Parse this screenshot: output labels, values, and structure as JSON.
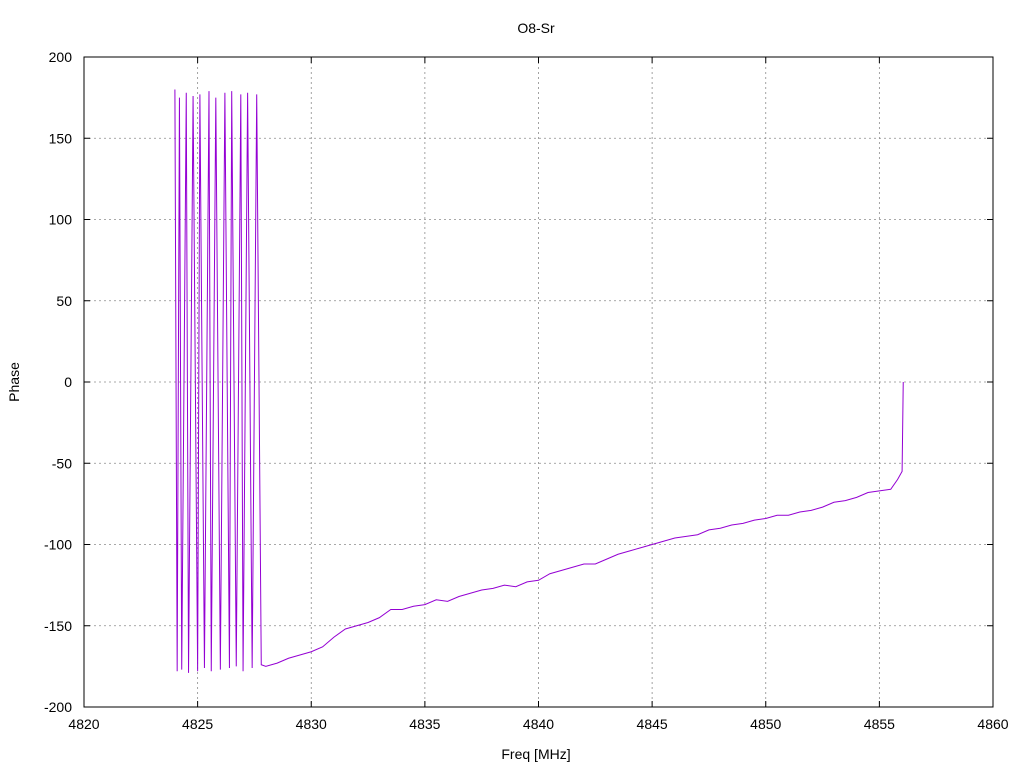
{
  "chart_data": {
    "type": "line",
    "title": "O8-Sr",
    "xlabel": "Freq [MHz]",
    "ylabel": "Phase",
    "xlim": [
      4820,
      4860
    ],
    "ylim": [
      -200,
      200
    ],
    "x_ticks": [
      4820,
      4825,
      4830,
      4835,
      4840,
      4845,
      4850,
      4855,
      4860
    ],
    "y_ticks": [
      -200,
      -150,
      -100,
      -50,
      0,
      50,
      100,
      150,
      200
    ],
    "grid": true,
    "legend": "none",
    "series_color": "#9400d3",
    "series": [
      {
        "x": [
          4824.0,
          4824.1,
          4824.2,
          4824.3,
          4824.5,
          4824.6,
          4824.8,
          4825.0,
          4825.1,
          4825.3,
          4825.5,
          4825.6,
          4825.8,
          4826.0,
          4826.2,
          4826.4,
          4826.5,
          4826.7,
          4826.9,
          4827.0,
          4827.2,
          4827.4,
          4827.6,
          4827.8,
          4828.0,
          4828.5,
          4829.0,
          4829.5,
          4830.0,
          4830.5,
          4831.0,
          4831.5,
          4832.0,
          4832.5,
          4833.0,
          4833.5,
          4834.0,
          4834.5,
          4835.0,
          4835.5,
          4836.0,
          4836.5,
          4837.0,
          4837.5,
          4838.0,
          4838.5,
          4839.0,
          4839.5,
          4840.0,
          4840.5,
          4841.0,
          4841.5,
          4842.0,
          4842.5,
          4843.0,
          4843.5,
          4844.0,
          4844.5,
          4845.0,
          4845.5,
          4846.0,
          4846.5,
          4847.0,
          4847.5,
          4848.0,
          4848.5,
          4849.0,
          4849.5,
          4850.0,
          4850.5,
          4851.0,
          4851.5,
          4852.0,
          4852.5,
          4853.0,
          4853.5,
          4854.0,
          4854.5,
          4855.0,
          4855.5,
          4855.8,
          4856.0,
          4856.05
        ],
        "y": [
          180,
          -178,
          175,
          -177,
          178,
          -179,
          176,
          -178,
          177,
          -176,
          179,
          -178,
          175,
          -177,
          178,
          -176,
          179,
          -175,
          177,
          -178,
          178,
          -176,
          177,
          -174,
          -175,
          -173,
          -170,
          -168,
          -166,
          -163,
          -157,
          -152,
          -150,
          -148,
          -145,
          -140,
          -140,
          -138,
          -137,
          -134,
          -135,
          -132,
          -130,
          -128,
          -127,
          -125,
          -126,
          -123,
          -122,
          -118,
          -116,
          -114,
          -112,
          -112,
          -109,
          -106,
          -104,
          -102,
          -100,
          -98,
          -96,
          -95,
          -94,
          -91,
          -90,
          -88,
          -87,
          -85,
          -84,
          -82,
          -82,
          -80,
          -79,
          -77,
          -74,
          -73,
          -71,
          -68,
          -67,
          -66,
          -60,
          -55,
          0
        ]
      }
    ]
  }
}
